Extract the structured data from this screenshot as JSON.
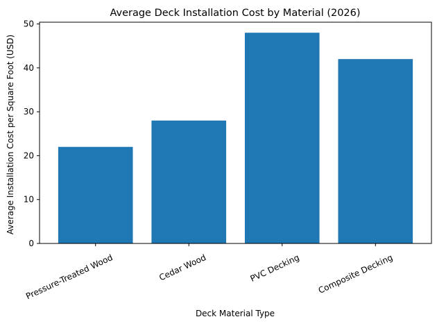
{
  "chart_data": {
    "type": "bar",
    "title": "Average Deck Installation Cost by Material (2026)",
    "xlabel": "Deck Material Type",
    "ylabel": "Average Installation Cost per Square Foot (USD)",
    "categories": [
      "Pressure-Treated Wood",
      "Cedar Wood",
      "PVC Decking",
      "Composite Decking"
    ],
    "values": [
      22,
      28,
      48,
      42
    ],
    "ylim": [
      0,
      50.4
    ],
    "yticks": [
      0,
      10,
      20,
      30,
      40,
      50
    ],
    "bar_color": "#1f77b4",
    "grid": false,
    "legend": "none"
  }
}
